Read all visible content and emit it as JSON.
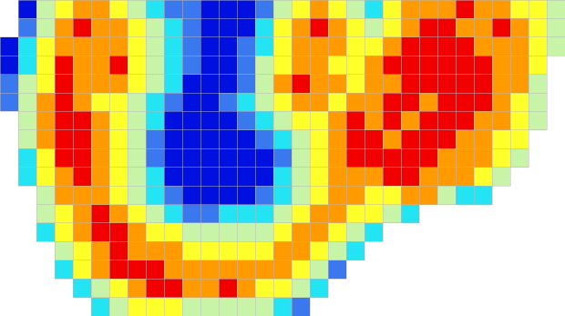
{
  "map": {
    "palette": [
      "#0010e0",
      "#3a78f0",
      "#22e4f2",
      "#c8f4a8",
      "#ffff2a",
      "#ff9a00",
      "#f20000"
    ],
    "grid": [
      [
        null,
        1,
        4,
        5,
        6,
        6,
        5,
        4,
        3,
        2,
        2,
        1,
        1,
        1,
        2,
        4,
        5,
        6,
        5,
        4,
        3,
        5,
        6,
        6,
        6,
        7,
        6,
        6,
        5,
        5,
        4
      ],
      [
        null,
        2,
        4,
        6,
        7,
        6,
        6,
        5,
        4,
        3,
        2,
        1,
        1,
        1,
        3,
        5,
        6,
        7,
        6,
        5,
        4,
        5,
        6,
        7,
        7,
        6,
        6,
        7,
        6,
        5,
        4
      ],
      [
        1,
        3,
        5,
        6,
        6,
        6,
        6,
        5,
        4,
        3,
        2,
        1,
        1,
        2,
        3,
        5,
        6,
        6,
        6,
        5,
        5,
        6,
        7,
        7,
        7,
        7,
        6,
        6,
        6,
        5,
        4
      ],
      [
        1,
        3,
        5,
        7,
        6,
        6,
        7,
        5,
        4,
        3,
        2,
        1,
        1,
        2,
        4,
        5,
        6,
        6,
        5,
        5,
        6,
        7,
        7,
        7,
        7,
        7,
        7,
        6,
        6,
        5,
        null
      ],
      [
        2,
        4,
        5,
        7,
        6,
        6,
        6,
        5,
        4,
        3,
        1,
        1,
        1,
        2,
        4,
        6,
        7,
        6,
        6,
        5,
        6,
        6,
        7,
        7,
        7,
        7,
        7,
        6,
        6,
        4,
        null
      ],
      [
        2,
        4,
        6,
        7,
        6,
        5,
        5,
        4,
        3,
        2,
        1,
        1,
        2,
        3,
        4,
        5,
        6,
        6,
        5,
        6,
        6,
        7,
        7,
        6,
        7,
        7,
        7,
        6,
        5,
        4,
        null
      ],
      [
        null,
        4,
        6,
        7,
        7,
        6,
        5,
        4,
        3,
        1,
        1,
        1,
        1,
        2,
        3,
        4,
        5,
        5,
        6,
        7,
        6,
        7,
        6,
        7,
        7,
        7,
        6,
        6,
        5,
        4,
        null
      ],
      [
        null,
        4,
        6,
        7,
        7,
        6,
        5,
        4,
        2,
        1,
        1,
        1,
        1,
        1,
        2,
        3,
        4,
        5,
        6,
        7,
        7,
        6,
        7,
        7,
        7,
        6,
        6,
        5,
        5,
        null,
        null
      ],
      [
        null,
        3,
        5,
        7,
        7,
        6,
        5,
        4,
        2,
        1,
        1,
        1,
        1,
        1,
        1,
        2,
        4,
        5,
        6,
        7,
        7,
        7,
        7,
        7,
        6,
        6,
        6,
        5,
        4,
        null,
        null
      ],
      [
        null,
        3,
        5,
        6,
        7,
        6,
        5,
        4,
        3,
        1,
        1,
        1,
        1,
        1,
        1,
        3,
        4,
        5,
        6,
        6,
        6,
        7,
        7,
        6,
        6,
        6,
        5,
        4,
        null,
        null,
        null
      ],
      [
        null,
        null,
        4,
        6,
        6,
        6,
        5,
        4,
        3,
        2,
        1,
        1,
        1,
        1,
        2,
        3,
        4,
        5,
        6,
        6,
        5,
        5,
        6,
        6,
        4,
        3,
        3,
        null,
        null,
        null,
        null
      ],
      [
        null,
        null,
        4,
        5,
        6,
        7,
        6,
        5,
        4,
        3,
        2,
        2,
        3,
        3,
        3,
        4,
        5,
        6,
        6,
        5,
        5,
        4,
        3,
        null,
        null,
        null,
        null,
        null,
        null,
        null,
        null
      ],
      [
        null,
        null,
        3,
        5,
        6,
        7,
        7,
        6,
        5,
        5,
        4,
        4,
        4,
        4,
        4,
        5,
        6,
        6,
        5,
        4,
        3,
        null,
        null,
        null,
        null,
        null,
        null,
        null,
        null,
        null,
        null
      ],
      [
        null,
        null,
        null,
        4,
        5,
        6,
        7,
        6,
        6,
        6,
        5,
        5,
        5,
        5,
        5,
        6,
        6,
        5,
        4,
        3,
        null,
        null,
        null,
        null,
        null,
        null,
        null,
        null,
        null,
        null,
        null
      ],
      [
        null,
        null,
        null,
        3,
        5,
        6,
        7,
        7,
        7,
        6,
        6,
        6,
        6,
        6,
        6,
        6,
        5,
        4,
        2,
        null,
        null,
        null,
        null,
        null,
        null,
        null,
        null,
        null,
        null,
        null,
        null
      ],
      [
        null,
        null,
        null,
        null,
        3,
        4,
        5,
        6,
        7,
        7,
        6,
        6,
        7,
        6,
        5,
        5,
        4,
        3,
        null,
        null,
        null,
        null,
        null,
        null,
        null,
        null,
        null,
        null,
        null,
        null,
        null
      ],
      [
        null,
        null,
        null,
        null,
        null,
        3,
        4,
        5,
        5,
        5,
        4,
        4,
        4,
        4,
        4,
        3,
        2,
        null,
        null,
        null,
        null,
        null,
        null,
        null,
        null,
        null,
        null,
        null,
        null,
        null,
        null
      ]
    ]
  }
}
